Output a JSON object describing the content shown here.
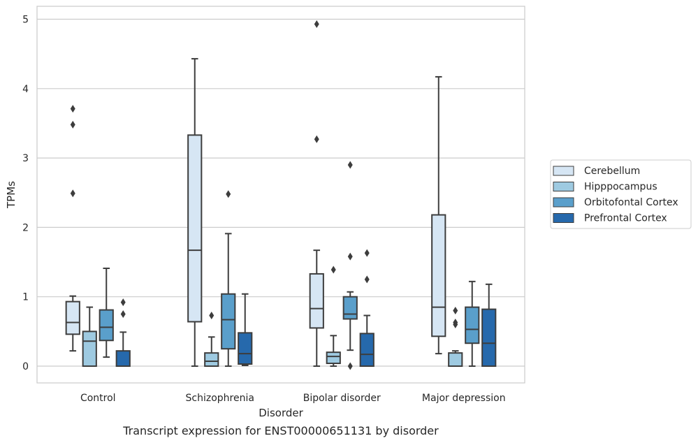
{
  "chart_data": {
    "type": "box",
    "caption": "Transcript expression for ENST00000651131 by disorder",
    "xlabel": "Disorder",
    "ylabel": "TPMs",
    "ylim": [
      -0.24,
      5.2
    ],
    "yticks": [
      0,
      1,
      2,
      3,
      4,
      5
    ],
    "grid": "horizontal",
    "legend_position": "right",
    "categories": [
      "Control",
      "Schizophrenia",
      "Bipolar disorder",
      "Major depression"
    ],
    "series": [
      {
        "name": "Cerebellum",
        "color": "#d6e6f4",
        "boxes": [
          {
            "whislo": 0.22,
            "q1": 0.46,
            "med": 0.63,
            "q3": 0.93,
            "whishi": 1.01,
            "fliers": [
              2.49,
              3.48,
              3.71
            ]
          },
          {
            "whislo": 0.0,
            "q1": 0.64,
            "med": 1.67,
            "q3": 3.33,
            "whishi": 4.43,
            "fliers": []
          },
          {
            "whislo": 0.0,
            "q1": 0.55,
            "med": 0.83,
            "q3": 1.33,
            "whishi": 1.67,
            "fliers": [
              3.27,
              4.93
            ]
          },
          {
            "whislo": 0.18,
            "q1": 0.43,
            "med": 0.85,
            "q3": 2.18,
            "whishi": 4.17,
            "fliers": []
          }
        ]
      },
      {
        "name": "Hipppocampus",
        "color": "#9ecae1",
        "boxes": [
          {
            "whislo": 0.0,
            "q1": 0.0,
            "med": 0.36,
            "q3": 0.5,
            "whishi": 0.85,
            "fliers": []
          },
          {
            "whislo": 0.0,
            "q1": 0.0,
            "med": 0.07,
            "q3": 0.19,
            "whishi": 0.42,
            "fliers": [
              0.73
            ]
          },
          {
            "whislo": 0.0,
            "q1": 0.04,
            "med": 0.14,
            "q3": 0.2,
            "whishi": 0.44,
            "fliers": [
              1.39
            ]
          },
          {
            "whislo": 0.0,
            "q1": 0.0,
            "med": 0.0,
            "q3": 0.19,
            "whishi": 0.22,
            "fliers": [
              0.6,
              0.63,
              0.8
            ]
          }
        ]
      },
      {
        "name": "Orbitofontal Cortex",
        "color": "#5a9fcb",
        "boxes": [
          {
            "whislo": 0.13,
            "q1": 0.37,
            "med": 0.56,
            "q3": 0.81,
            "whishi": 1.41,
            "fliers": []
          },
          {
            "whislo": 0.0,
            "q1": 0.25,
            "med": 0.67,
            "q3": 1.04,
            "whishi": 1.91,
            "fliers": [
              2.48
            ]
          },
          {
            "whislo": 0.23,
            "q1": 0.68,
            "med": 0.75,
            "q3": 1.0,
            "whishi": 1.07,
            "fliers": [
              0.0,
              1.58,
              2.9
            ]
          },
          {
            "whislo": 0.0,
            "q1": 0.33,
            "med": 0.53,
            "q3": 0.85,
            "whishi": 1.22,
            "fliers": []
          }
        ]
      },
      {
        "name": "Prefrontal Cortex",
        "color": "#2669ac",
        "boxes": [
          {
            "whislo": 0.0,
            "q1": 0.0,
            "med": 0.0,
            "q3": 0.22,
            "whishi": 0.49,
            "fliers": [
              0.75,
              0.92
            ]
          },
          {
            "whislo": 0.01,
            "q1": 0.03,
            "med": 0.18,
            "q3": 0.48,
            "whishi": 1.04,
            "fliers": []
          },
          {
            "whislo": 0.0,
            "q1": 0.0,
            "med": 0.17,
            "q3": 0.47,
            "whishi": 0.73,
            "fliers": [
              1.25,
              1.63
            ]
          },
          {
            "whislo": 0.0,
            "q1": 0.0,
            "med": 0.33,
            "q3": 0.82,
            "whishi": 1.18,
            "fliers": []
          }
        ]
      }
    ]
  }
}
